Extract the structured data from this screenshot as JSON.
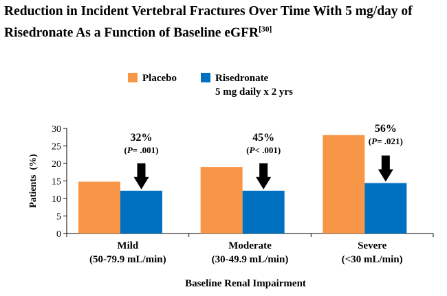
{
  "title": {
    "line1": "Reduction in Incident Vertebral Fractures Over Time With 5 mg/day of",
    "line2": "Risedronate As a Function of Baseline eGFR",
    "ref": "[30]"
  },
  "chart_data": {
    "type": "bar",
    "categories": [
      {
        "name": "Mild",
        "range": "(50-79.9 mL/min)"
      },
      {
        "name": "Moderate",
        "range": "(30-49.9 mL/min)"
      },
      {
        "name": "Severe",
        "range": "(<30 mL/min)"
      }
    ],
    "series": [
      {
        "name": "Placebo",
        "color": "#f79646",
        "values": [
          14.8,
          19,
          28.1
        ]
      },
      {
        "name": "Risedronate",
        "name_line2": "5 mg daily x 2 yrs",
        "color": "#0070c0",
        "values": [
          12.2,
          12.2,
          14.4
        ]
      }
    ],
    "annotations": [
      {
        "percent": "32%",
        "p_label": "P",
        "p_rest": "= .001)"
      },
      {
        "percent": "45%",
        "p_label": "P",
        "p_rest": "< .001)"
      },
      {
        "percent": "56%",
        "p_label": "P",
        "p_rest": "= .021)"
      }
    ],
    "xlabel": "Baseline Renal Impairment",
    "ylabel": "Patients  (%)",
    "ylim": [
      0,
      30
    ],
    "yticks": [
      0,
      5,
      10,
      15,
      20,
      25,
      30
    ],
    "grid": false,
    "legend_position": "top"
  }
}
